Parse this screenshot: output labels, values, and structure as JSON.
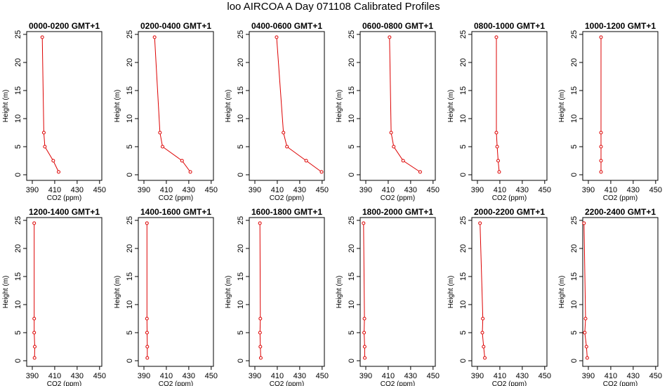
{
  "page_title": "loo AIRCOA A  Day 071108  Calibrated Profiles",
  "colors": {
    "series": "#dd0000",
    "axis": "#000000"
  },
  "chart_data": [
    {
      "type": "line",
      "title": "0000-0200 GMT+1",
      "xlabel": "CO2 (ppm)",
      "ylabel": "Height (m)",
      "xlim": [
        385,
        452
      ],
      "ylim": [
        -1,
        25.5
      ],
      "xticks": [
        390,
        410,
        430,
        450
      ],
      "yticks": [
        0,
        5,
        10,
        15,
        20,
        25
      ],
      "x": [
        413.5,
        408.7,
        401.2,
        400.3,
        398.9
      ],
      "y": [
        0.5,
        2.5,
        5,
        7.5,
        24.5
      ]
    },
    {
      "type": "line",
      "title": "0200-0400 GMT+1",
      "xlabel": "CO2 (ppm)",
      "ylabel": "Height (m)",
      "xlim": [
        385,
        452
      ],
      "ylim": [
        -1,
        25.5
      ],
      "xticks": [
        390,
        410,
        430,
        450
      ],
      "yticks": [
        0,
        5,
        10,
        15,
        20,
        25
      ],
      "x": [
        431.4,
        424.0,
        406.6,
        404.3,
        399.5
      ],
      "y": [
        0.5,
        2.5,
        5,
        7.5,
        24.5
      ]
    },
    {
      "type": "line",
      "title": "0400-0600 GMT+1",
      "xlabel": "CO2 (ppm)",
      "ylabel": "Height (m)",
      "xlim": [
        385,
        452
      ],
      "ylim": [
        -1,
        25.5
      ],
      "xticks": [
        390,
        410,
        430,
        450
      ],
      "yticks": [
        0,
        5,
        10,
        15,
        20,
        25
      ],
      "x": [
        449.5,
        435.8,
        418.6,
        415.5,
        409.4
      ],
      "y": [
        0.5,
        2.5,
        5,
        7.5,
        24.5
      ]
    },
    {
      "type": "line",
      "title": "0600-0800 GMT+1",
      "xlabel": "CO2 (ppm)",
      "ylabel": "Height (m)",
      "xlim": [
        385,
        452
      ],
      "ylim": [
        -1,
        25.5
      ],
      "xticks": [
        390,
        410,
        430,
        450
      ],
      "yticks": [
        0,
        5,
        10,
        15,
        20,
        25
      ],
      "x": [
        438.5,
        423.3,
        414.9,
        412.6,
        411.2
      ],
      "y": [
        0.5,
        2.5,
        5,
        7.5,
        24.5
      ]
    },
    {
      "type": "line",
      "title": "0800-1000 GMT+1",
      "xlabel": "CO2 (ppm)",
      "ylabel": "Height (m)",
      "xlim": [
        385,
        452
      ],
      "ylim": [
        -1,
        25.5
      ],
      "xticks": [
        390,
        410,
        430,
        450
      ],
      "yticks": [
        0,
        5,
        10,
        15,
        20,
        25
      ],
      "x": [
        409.4,
        408.5,
        407.6,
        406.9,
        406.9
      ],
      "y": [
        0.5,
        2.5,
        5,
        7.5,
        24.5
      ]
    },
    {
      "type": "line",
      "title": "1000-1200 GMT+1",
      "xlabel": "CO2 (ppm)",
      "ylabel": "Height (m)",
      "xlim": [
        385,
        452
      ],
      "ylim": [
        -1,
        25.5
      ],
      "xticks": [
        390,
        410,
        430,
        450
      ],
      "yticks": [
        0,
        5,
        10,
        15,
        20,
        25
      ],
      "x": [
        401.3,
        401.3,
        401.3,
        401.3,
        401.3
      ],
      "y": [
        0.5,
        2.5,
        5,
        7.5,
        24.5
      ]
    },
    {
      "type": "line",
      "title": "1200-1400 GMT+1",
      "xlabel": "CO2 (ppm)",
      "ylabel": "Height (m)",
      "xlim": [
        385,
        452
      ],
      "ylim": [
        -1,
        25.5
      ],
      "xticks": [
        390,
        410,
        430,
        450
      ],
      "yticks": [
        0,
        5,
        10,
        15,
        20,
        25
      ],
      "x": [
        392.0,
        392.2,
        391.7,
        391.7,
        391.7
      ],
      "y": [
        0.5,
        2.5,
        5,
        7.5,
        24.5
      ]
    },
    {
      "type": "line",
      "title": "1400-1600 GMT+1",
      "xlabel": "CO2 (ppm)",
      "ylabel": "Height (m)",
      "xlim": [
        385,
        452
      ],
      "ylim": [
        -1,
        25.5
      ],
      "xticks": [
        390,
        410,
        430,
        450
      ],
      "yticks": [
        0,
        5,
        10,
        15,
        20,
        25
      ],
      "x": [
        393.0,
        393.0,
        392.8,
        392.7,
        392.7
      ],
      "y": [
        0.5,
        2.5,
        5,
        7.5,
        24.5
      ]
    },
    {
      "type": "line",
      "title": "1600-1800 GMT+1",
      "xlabel": "CO2 (ppm)",
      "ylabel": "Height (m)",
      "xlim": [
        385,
        452
      ],
      "ylim": [
        -1,
        25.5
      ],
      "xticks": [
        390,
        410,
        430,
        450
      ],
      "yticks": [
        0,
        5,
        10,
        15,
        20,
        25
      ],
      "x": [
        395.3,
        394.9,
        394.6,
        394.9,
        394.5
      ],
      "y": [
        0.5,
        2.5,
        5,
        7.5,
        24.5
      ]
    },
    {
      "type": "line",
      "title": "1800-2000 GMT+1",
      "xlabel": "CO2 (ppm)",
      "ylabel": "Height (m)",
      "xlim": [
        385,
        452
      ],
      "ylim": [
        -1,
        25.5
      ],
      "xticks": [
        390,
        410,
        430,
        450
      ],
      "yticks": [
        0,
        5,
        10,
        15,
        20,
        25
      ],
      "x": [
        389.1,
        389.0,
        388.5,
        388.8,
        388.0
      ],
      "y": [
        0.5,
        2.5,
        5,
        7.5,
        24.5
      ]
    },
    {
      "type": "line",
      "title": "2000-2200 GMT+1",
      "xlabel": "CO2 (ppm)",
      "ylabel": "Height (m)",
      "xlim": [
        385,
        452
      ],
      "ylim": [
        -1,
        25.5
      ],
      "xticks": [
        390,
        410,
        430,
        450
      ],
      "yticks": [
        0,
        5,
        10,
        15,
        20,
        25
      ],
      "x": [
        396.6,
        395.5,
        394.4,
        394.8,
        392.3
      ],
      "y": [
        0.5,
        2.5,
        5,
        7.5,
        24.5
      ]
    },
    {
      "type": "line",
      "title": "2200-2400 GMT+1",
      "xlabel": "CO2 (ppm)",
      "ylabel": "Height (m)",
      "xlim": [
        385,
        452
      ],
      "ylim": [
        -1,
        25.5
      ],
      "xticks": [
        390,
        410,
        430,
        450
      ],
      "yticks": [
        0,
        5,
        10,
        15,
        20,
        25
      ],
      "x": [
        389.0,
        388.3,
        386.8,
        387.5,
        386.1
      ],
      "y": [
        0.5,
        2.5,
        5,
        7.5,
        24.5
      ]
    }
  ]
}
